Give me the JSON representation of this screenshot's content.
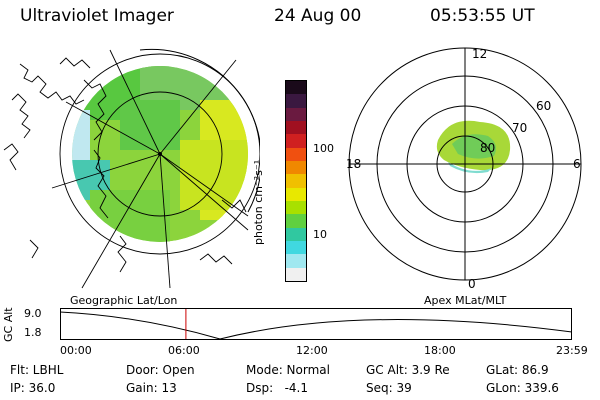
{
  "header": {
    "instrument": "Ultraviolet Imager",
    "date": "24 Aug 00",
    "time": "05:53:55 UT"
  },
  "colorbar": {
    "unit_label": "photon cm⁻²s⁻¹",
    "ticks": [
      "100",
      "10"
    ],
    "colors": [
      "#1a0a1a",
      "#3a1840",
      "#6a1a40",
      "#a01020",
      "#d02020",
      "#f05010",
      "#f08800",
      "#f0c000",
      "#e8e800",
      "#a8e000",
      "#60d040",
      "#30c8a0",
      "#40d8e0",
      "#a0e8f0",
      "#f0f0f0"
    ]
  },
  "maps": {
    "left_caption": "Geographic Lat/Lon",
    "right_caption": "Apex MLat/MLT",
    "mlt_labels": {
      "top": "12",
      "left": "18",
      "right": "6",
      "bottom": "0"
    },
    "mlat_labels": [
      "60",
      "70",
      "80"
    ]
  },
  "timeline": {
    "ylabel": "GC Alt",
    "yticks": [
      "9.0",
      "1.8"
    ],
    "xticks": [
      "00:00",
      "06:00",
      "12:00",
      "18:00",
      "23:59"
    ],
    "marker_time": "05:53:55",
    "marker_color": "#cc0000"
  },
  "info": {
    "row1": {
      "flt": "Flt: LBHL",
      "door": "Door: Open",
      "mode": "Mode: Normal",
      "gcalt": "GC Alt: 3.9 Re",
      "glat": "GLat: 86.9"
    },
    "row2": {
      "ip": "IP: 36.0",
      "gain": "Gain: 13",
      "dsp": "Dsp:   -4.1",
      "seq": "Seq: 39",
      "glon": "GLon: 339.6"
    }
  }
}
